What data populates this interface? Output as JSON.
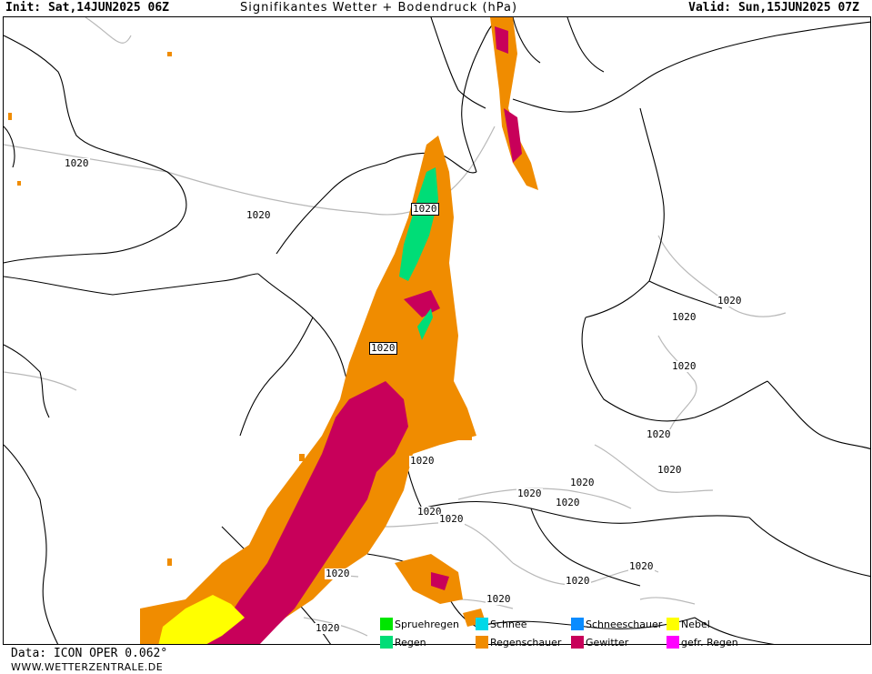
{
  "header": {
    "init": "Init: Sat,14JUN2025 06Z",
    "title": "Signifikantes Wetter + Bodendruck (hPa)",
    "valid": "Valid: Sun,15JUN2025 07Z"
  },
  "isobar_labels": [
    "1020",
    "1020",
    "1020",
    "1020",
    "1020",
    "1020",
    "1020",
    "1020",
    "1020",
    "1020",
    "1020",
    "1020",
    "1020",
    "1020",
    "1020",
    "1020",
    "1020",
    "1020",
    "1020",
    "1020"
  ],
  "legend": {
    "items": [
      {
        "label": "Spruehregen",
        "color": "#00e600"
      },
      {
        "label": "Regen",
        "color": "#00dd77"
      },
      {
        "label": "Schnee",
        "color": "#00d8e8"
      },
      {
        "label": "Regenschauer",
        "color": "#f08c00"
      },
      {
        "label": "Schneeschauer",
        "color": "#0a8cff"
      },
      {
        "label": "Gewitter",
        "color": "#c8005a"
      },
      {
        "label": "Nebel",
        "color": "#ffff00"
      },
      {
        "label": "gefr. Regen",
        "color": "#ff00ff"
      }
    ]
  },
  "footer": {
    "data_source": "Data: ICON OPER 0.062°",
    "website": "WWW.WETTERZENTRALE.DE"
  }
}
